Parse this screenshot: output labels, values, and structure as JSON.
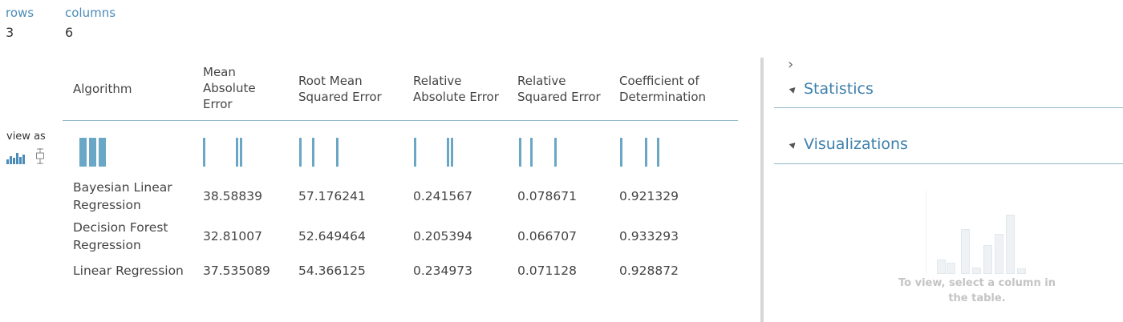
{
  "summary": {
    "rows_label": "rows",
    "rows_value": "3",
    "columns_label": "columns",
    "columns_value": "6"
  },
  "view_as": {
    "label": "view as",
    "icons": [
      "histogram-icon",
      "boxplot-icon"
    ]
  },
  "table": {
    "headers": [
      "Algorithm",
      "Mean Absolute Error",
      "Root Mean Squared Error",
      "Relative Absolute Error",
      "Relative Squared Error",
      "Coefficient of Determination"
    ],
    "rows": [
      [
        "Bayesian Linear Regression",
        "38.58839",
        "57.176241",
        "0.241567",
        "0.078671",
        "0.921329"
      ],
      [
        "Decision Forest Regression",
        "32.81007",
        "52.649464",
        "0.205394",
        "0.066707",
        "0.933293"
      ],
      [
        "Linear Regression",
        "37.535089",
        "54.366125",
        "0.234973",
        "0.071128",
        "0.928872"
      ]
    ]
  },
  "side_panel": {
    "sections": [
      "Statistics",
      "Visualizations"
    ],
    "hint": "To view, select a column in the table."
  },
  "colors": {
    "accent": "#3d80ad",
    "bar": "#6aa7c6"
  }
}
